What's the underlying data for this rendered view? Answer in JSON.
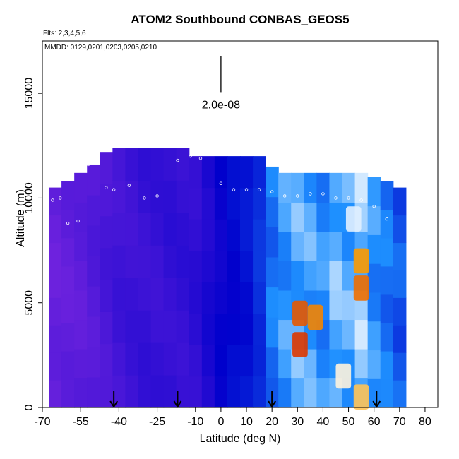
{
  "chart_data": {
    "type": "heatmap",
    "title": "ATOM2 Southbound CONBAS_GEOS5",
    "subtitle_flights": "Flts: 2,3,4,5,6",
    "subtitle_dates": "MMDD: 0129,0201,0203,0205,0210",
    "xlabel": "Latitude (deg N)",
    "ylabel": "Altitude (m)",
    "xlim": [
      -70,
      85
    ],
    "ylim": [
      0,
      17500
    ],
    "xticks": [
      -70,
      -55,
      -40,
      -25,
      -10,
      0,
      10,
      20,
      30,
      40,
      50,
      60,
      70,
      80
    ],
    "xtick_labels": [
      "-70",
      "-55",
      "-40",
      "-25",
      "-10",
      "0",
      "10",
      "20",
      "30",
      "40",
      "50",
      "60",
      "70",
      "80"
    ],
    "yticks": [
      0,
      5000,
      10000,
      15000
    ],
    "ytick_labels": [
      "0",
      "5000",
      "10000",
      "15000"
    ],
    "scale_bar": {
      "label": "2.0e-08",
      "x": 0,
      "y_bottom": 15800,
      "y_top": 17500
    },
    "arrows_at_latitude": [
      -42,
      -17,
      20,
      61
    ],
    "colors": {
      "low": "#8a2be2",
      "mid_low": "#0000cc",
      "mid": "#1e90ff",
      "mid_high": "#ffffff",
      "high": "#ffa500",
      "max": "#cc0000"
    },
    "columns": [
      {
        "lat": -65,
        "top": 10500,
        "level": 0.08
      },
      {
        "lat": -60,
        "top": 10800,
        "level": 0.09
      },
      {
        "lat": -55,
        "top": 11200,
        "level": 0.1
      },
      {
        "lat": -50,
        "top": 11600,
        "level": 0.12
      },
      {
        "lat": -45,
        "top": 12200,
        "level": 0.14
      },
      {
        "lat": -40,
        "top": 12400,
        "level": 0.16
      },
      {
        "lat": -35,
        "top": 12400,
        "level": 0.17
      },
      {
        "lat": -30,
        "top": 12400,
        "level": 0.18
      },
      {
        "lat": -25,
        "top": 12400,
        "level": 0.18
      },
      {
        "lat": -20,
        "top": 12400,
        "level": 0.19
      },
      {
        "lat": -15,
        "top": 12400,
        "level": 0.19
      },
      {
        "lat": -10,
        "top": 12000,
        "level": 0.2
      },
      {
        "lat": -5,
        "top": 12000,
        "level": 0.24
      },
      {
        "lat": 0,
        "top": 12000,
        "level": 0.28
      },
      {
        "lat": 5,
        "top": 12000,
        "level": 0.31
      },
      {
        "lat": 10,
        "top": 12000,
        "level": 0.33
      },
      {
        "lat": 15,
        "top": 12000,
        "level": 0.38
      },
      {
        "lat": 20,
        "top": 11500,
        "level": 0.5
      },
      {
        "lat": 25,
        "top": 11200,
        "level": 0.55
      },
      {
        "lat": 30,
        "top": 11200,
        "level": 0.58
      },
      {
        "lat": 35,
        "top": 11200,
        "level": 0.57
      },
      {
        "lat": 40,
        "top": 11200,
        "level": 0.54
      },
      {
        "lat": 45,
        "top": 11200,
        "level": 0.6
      },
      {
        "lat": 50,
        "top": 11200,
        "level": 0.58
      },
      {
        "lat": 55,
        "top": 11200,
        "level": 0.62
      },
      {
        "lat": 60,
        "top": 11000,
        "level": 0.54
      },
      {
        "lat": 65,
        "top": 10800,
        "level": 0.5
      },
      {
        "lat": 70,
        "top": 10500,
        "level": 0.45
      }
    ],
    "hotspots": [
      {
        "lat": 31,
        "alt": 4500,
        "level": 0.92
      },
      {
        "lat": 37,
        "alt": 4300,
        "level": 0.88
      },
      {
        "lat": 31,
        "alt": 3000,
        "level": 0.95
      },
      {
        "lat": 55,
        "alt": 7000,
        "level": 0.86
      },
      {
        "lat": 55,
        "alt": 5700,
        "level": 0.9
      },
      {
        "lat": 55,
        "alt": 500,
        "level": 0.8
      },
      {
        "lat": 52,
        "alt": 9000,
        "level": 0.68
      },
      {
        "lat": 48,
        "alt": 1500,
        "level": 0.72
      }
    ],
    "flight_track": [
      {
        "lat": -69,
        "alt": 9500
      },
      {
        "lat": -66,
        "alt": 9900
      },
      {
        "lat": -63,
        "alt": 10000
      },
      {
        "lat": -60,
        "alt": 8800
      },
      {
        "lat": -56,
        "alt": 8900
      },
      {
        "lat": -52,
        "alt": 11600
      },
      {
        "lat": -48,
        "alt": 12300
      },
      {
        "lat": -45,
        "alt": 10500
      },
      {
        "lat": -42,
        "alt": 10400
      },
      {
        "lat": -36,
        "alt": 10600
      },
      {
        "lat": -30,
        "alt": 10000
      },
      {
        "lat": -25,
        "alt": 10100
      },
      {
        "lat": -17,
        "alt": 11800
      },
      {
        "lat": -12,
        "alt": 12000
      },
      {
        "lat": -8,
        "alt": 11900
      },
      {
        "lat": 0,
        "alt": 10700
      },
      {
        "lat": 5,
        "alt": 10400
      },
      {
        "lat": 10,
        "alt": 10400
      },
      {
        "lat": 15,
        "alt": 10400
      },
      {
        "lat": 20,
        "alt": 10300
      },
      {
        "lat": 25,
        "alt": 10100
      },
      {
        "lat": 30,
        "alt": 10100
      },
      {
        "lat": 35,
        "alt": 10200
      },
      {
        "lat": 40,
        "alt": 10200
      },
      {
        "lat": 45,
        "alt": 10000
      },
      {
        "lat": 50,
        "alt": 10000
      },
      {
        "lat": 55,
        "alt": 9900
      },
      {
        "lat": 60,
        "alt": 9600
      },
      {
        "lat": 65,
        "alt": 9000
      }
    ]
  }
}
